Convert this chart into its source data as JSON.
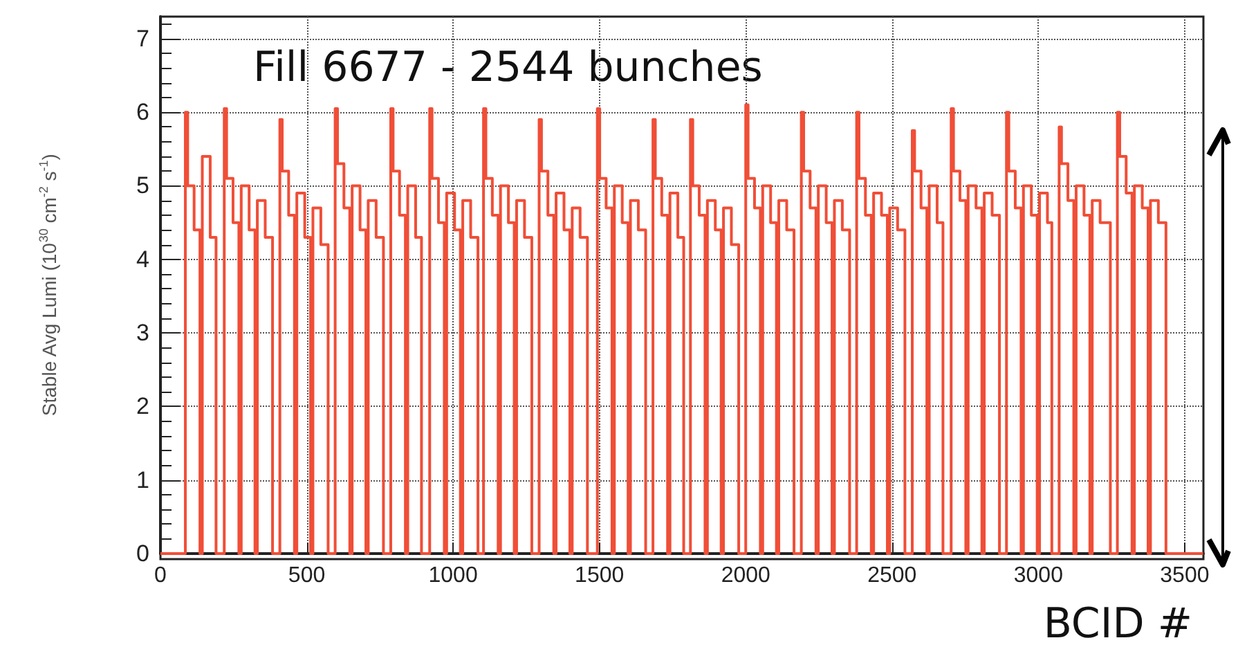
{
  "chart_data": {
    "type": "step",
    "annotations": [
      "Fill 6677 - 2544 bunches"
    ],
    "xlabel": "BCID #",
    "ylabel": "Stable Avg Lumi (10$^{30}$ cm$^{-2}$ s$^{-1}$)",
    "xlim": [
      0,
      3564
    ],
    "xticks": [
      0,
      500,
      1000,
      1500,
      2000,
      2500,
      3000,
      3500
    ],
    "ylim": [
      0,
      7.3
    ],
    "yticks": [
      0,
      1,
      2,
      3,
      4,
      5,
      6,
      7
    ],
    "grid": true,
    "marker": "none",
    "line_style": "solid",
    "series": [
      {
        "color": "#f04e37",
        "x": [
          0,
          85,
          93,
          115,
          135,
          143,
          170,
          190,
          218,
          226,
          248,
          268,
          276,
          303,
          323,
          331,
          358,
          383,
          408,
          416,
          438,
          458,
          466,
          493,
          513,
          521,
          548,
          573,
          597,
          605,
          627,
          647,
          655,
          682,
          702,
          710,
          737,
          762,
          787,
          795,
          817,
          837,
          845,
          872,
          892,
          920,
          928,
          950,
          970,
          978,
          1005,
          1025,
          1033,
          1060,
          1085,
          1104,
          1112,
          1134,
          1154,
          1162,
          1189,
          1209,
          1217,
          1244,
          1269,
          1294,
          1302,
          1324,
          1344,
          1352,
          1379,
          1399,
          1407,
          1434,
          1459,
          1493,
          1501,
          1523,
          1543,
          1551,
          1578,
          1598,
          1606,
          1633,
          1658,
          1683,
          1691,
          1713,
          1733,
          1741,
          1768,
          1788,
          1811,
          1819,
          1841,
          1861,
          1869,
          1896,
          1916,
          1924,
          1951,
          1976,
          2000,
          2008,
          2030,
          2050,
          2058,
          2085,
          2105,
          2113,
          2140,
          2165,
          2190,
          2198,
          2220,
          2240,
          2248,
          2275,
          2295,
          2303,
          2330,
          2355,
          2379,
          2387,
          2409,
          2429,
          2437,
          2464,
          2484,
          2492,
          2519,
          2544,
          2569,
          2577,
          2599,
          2619,
          2627,
          2654,
          2674,
          2702,
          2710,
          2732,
          2752,
          2760,
          2787,
          2807,
          2815,
          2842,
          2867,
          2891,
          2899,
          2921,
          2941,
          2949,
          2976,
          2996,
          3004,
          3031,
          3046,
          3071,
          3079,
          3101,
          3121,
          3129,
          3156,
          3176,
          3184,
          3211,
          3246,
          3270,
          3278,
          3300,
          3320,
          3328,
          3355,
          3375,
          3383,
          3410,
          3436,
          3563
        ],
        "values": [
          0,
          6.0,
          5.0,
          4.4,
          0,
          5.4,
          4.3,
          0,
          6.05,
          5.1,
          4.5,
          0,
          5.0,
          4.4,
          0,
          4.8,
          4.3,
          0,
          5.9,
          5.2,
          4.6,
          0,
          4.9,
          4.3,
          0,
          4.7,
          4.2,
          0,
          6.05,
          5.3,
          4.7,
          0,
          5.0,
          4.4,
          0,
          4.8,
          4.3,
          0,
          6.05,
          5.2,
          4.6,
          0,
          5.0,
          4.3,
          0,
          6.05,
          5.1,
          4.5,
          0,
          4.9,
          4.4,
          0,
          4.8,
          4.3,
          0,
          6.05,
          5.1,
          4.6,
          0,
          5.0,
          4.5,
          0,
          4.8,
          4.3,
          0,
          5.9,
          5.2,
          4.6,
          0,
          4.9,
          4.4,
          0,
          4.7,
          4.3,
          0,
          6.05,
          5.1,
          4.7,
          0,
          5.0,
          4.5,
          0,
          4.8,
          4.4,
          0,
          5.9,
          5.1,
          4.6,
          0,
          4.9,
          4.3,
          0,
          5.9,
          5.0,
          4.6,
          0,
          4.8,
          4.4,
          0,
          4.7,
          4.2,
          0,
          6.1,
          5.1,
          4.7,
          0,
          5.0,
          4.5,
          0,
          4.8,
          4.4,
          0,
          6.0,
          5.2,
          4.7,
          0,
          5.0,
          4.5,
          0,
          4.8,
          4.4,
          0,
          6.0,
          5.1,
          4.6,
          0,
          4.9,
          4.6,
          0,
          4.7,
          4.4,
          0,
          5.75,
          5.2,
          4.7,
          0,
          5.0,
          4.5,
          0,
          6.05,
          5.2,
          4.8,
          0,
          5.0,
          4.7,
          0,
          4.9,
          4.6,
          0,
          6.0,
          5.2,
          4.7,
          0,
          5.0,
          4.6,
          0,
          4.9,
          4.5,
          0,
          5.8,
          5.3,
          4.8,
          0,
          5.0,
          4.6,
          0,
          4.8,
          4.5,
          0,
          6.0,
          5.4,
          4.9,
          0,
          5.0,
          4.7,
          0,
          4.8,
          4.5,
          0,
          0
        ]
      }
    ]
  }
}
